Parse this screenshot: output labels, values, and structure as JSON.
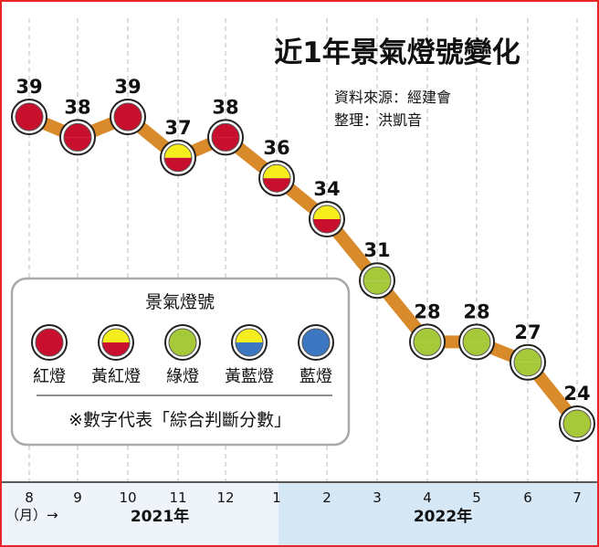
{
  "title": "近1年景氣燈號變化",
  "source": "資料來源：經建會",
  "editor": "整理：洪凱音",
  "unit_label": "（月）→",
  "colors": {
    "red": "#c8102e",
    "yellow": "#f6ee1c",
    "green": "#a6c93a",
    "blue": "#3b78c1",
    "line": "#d98b2b",
    "band_2021": "#eef4fa",
    "band_2022": "#d6e7f6",
    "frame": "#e8262a"
  },
  "legend": {
    "title": "景氣燈號",
    "items": [
      {
        "label": "紅燈",
        "signal": "red"
      },
      {
        "label": "黃紅燈",
        "signal": "yellow-red"
      },
      {
        "label": "綠燈",
        "signal": "green"
      },
      {
        "label": "黃藍燈",
        "signal": "yellow-blue"
      },
      {
        "label": "藍燈",
        "signal": "blue"
      }
    ],
    "note": "※數字代表「綜合判斷分數」"
  },
  "chart_data": {
    "type": "line",
    "title": "近1年景氣燈號變化",
    "categories": [
      "8",
      "9",
      "10",
      "11",
      "12",
      "1",
      "2",
      "3",
      "4",
      "5",
      "6",
      "7"
    ],
    "years": [
      {
        "label": "2021年",
        "months": [
          "8",
          "9",
          "10",
          "11",
          "12"
        ]
      },
      {
        "label": "2022年",
        "months": [
          "1",
          "2",
          "3",
          "4",
          "5",
          "6",
          "7"
        ]
      }
    ],
    "values": [
      39,
      38,
      39,
      37,
      38,
      36,
      34,
      31,
      28,
      28,
      27,
      24
    ],
    "signals": [
      "red",
      "red",
      "red",
      "yellow-red",
      "red",
      "yellow-red",
      "yellow-red",
      "green",
      "green",
      "green",
      "green",
      "green"
    ],
    "grid": "vertical-dashed"
  }
}
